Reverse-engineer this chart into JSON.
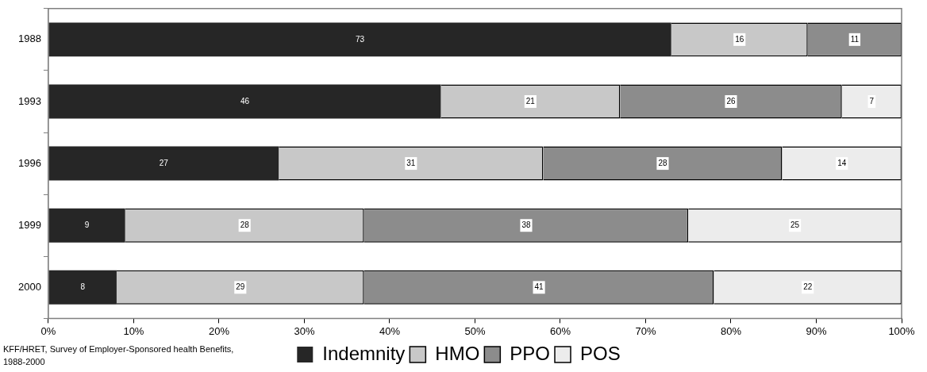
{
  "chart_data": {
    "type": "bar",
    "orientation": "horizontal",
    "stacked": true,
    "categories": [
      "1988",
      "1993",
      "1996",
      "1999",
      "2000"
    ],
    "series": [
      {
        "name": "Indemnity",
        "color": "#262626",
        "values": [
          73,
          46,
          27,
          9,
          8
        ]
      },
      {
        "name": "HMO",
        "color": "#c8c8c8",
        "values": [
          16,
          21,
          31,
          28,
          29
        ]
      },
      {
        "name": "PPO",
        "color": "#8c8c8c",
        "values": [
          11,
          26,
          28,
          38,
          41
        ]
      },
      {
        "name": "POS",
        "color": "#ececec",
        "values": [
          null,
          7,
          14,
          25,
          22
        ]
      }
    ],
    "xlim": [
      0,
      100
    ],
    "xticks": [
      {
        "value": 0,
        "label": "0%"
      },
      {
        "value": 10,
        "label": "10%"
      },
      {
        "value": 20,
        "label": "20%"
      },
      {
        "value": 30,
        "label": "30%"
      },
      {
        "value": 40,
        "label": "40%"
      },
      {
        "value": 50,
        "label": "50%"
      },
      {
        "value": 60,
        "label": "60%"
      },
      {
        "value": 70,
        "label": "70%"
      },
      {
        "value": 80,
        "label": "80%"
      },
      {
        "value": 90,
        "label": "90%"
      },
      {
        "value": 100,
        "label": "100%"
      }
    ],
    "data_labels": true,
    "grid": false,
    "legend": "bottom",
    "annotations": [
      "KFF/HRET, Survey of Employer-Sponsored health Benefits, 1988-2000"
    ]
  }
}
